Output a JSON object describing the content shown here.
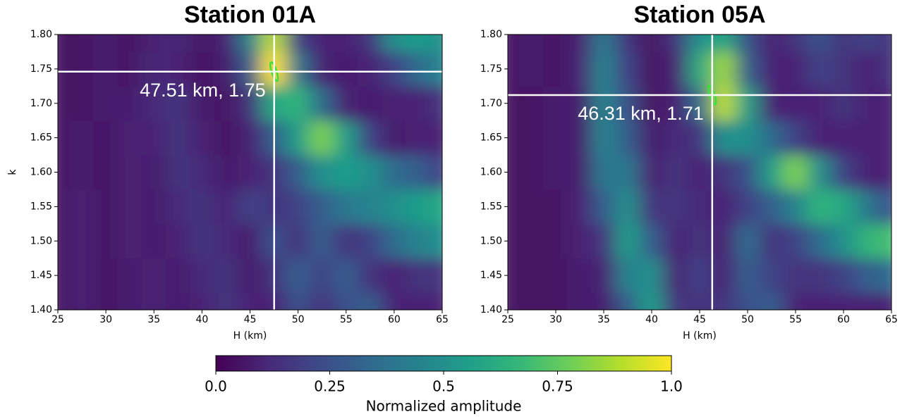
{
  "chart_data": [
    {
      "type": "heatmap",
      "title": "Station 01A",
      "x_label": "H (km)",
      "y_label": "k",
      "x": [
        25,
        27.5,
        30,
        32.5,
        35,
        37.5,
        40,
        42.5,
        45,
        47.5,
        50,
        52.5,
        55,
        57.5,
        60,
        62.5,
        65
      ],
      "y": [
        1.4,
        1.45,
        1.5,
        1.55,
        1.6,
        1.65,
        1.7,
        1.75,
        1.8
      ],
      "z": [
        [
          0.05,
          0.1,
          0.05,
          0.08,
          0.1,
          0.08,
          0.1,
          0.15,
          0.1,
          0.1,
          0.25,
          0.15,
          0.25,
          0.3,
          0.1,
          0.1,
          0.1
        ],
        [
          0.05,
          0.1,
          0.05,
          0.08,
          0.1,
          0.08,
          0.12,
          0.15,
          0.08,
          0.15,
          0.3,
          0.2,
          0.3,
          0.15,
          0.1,
          0.15,
          0.15
        ],
        [
          0.05,
          0.1,
          0.05,
          0.1,
          0.08,
          0.1,
          0.15,
          0.12,
          0.08,
          0.25,
          0.15,
          0.3,
          0.15,
          0.2,
          0.35,
          0.45,
          0.5
        ],
        [
          0.05,
          0.1,
          0.05,
          0.1,
          0.08,
          0.12,
          0.15,
          0.1,
          0.2,
          0.15,
          0.2,
          0.3,
          0.4,
          0.45,
          0.5,
          0.55,
          0.6
        ],
        [
          0.05,
          0.08,
          0.05,
          0.1,
          0.08,
          0.15,
          0.12,
          0.08,
          0.1,
          0.15,
          0.3,
          0.5,
          0.55,
          0.5,
          0.35,
          0.3,
          0.2
        ],
        [
          0.05,
          0.08,
          0.06,
          0.1,
          0.1,
          0.15,
          0.1,
          0.05,
          0.1,
          0.3,
          0.55,
          0.8,
          0.55,
          0.2,
          0.08,
          0.1,
          0.1
        ],
        [
          0.05,
          0.05,
          0.08,
          0.08,
          0.12,
          0.15,
          0.08,
          0.05,
          0.15,
          0.6,
          0.65,
          0.35,
          0.1,
          0.08,
          0.1,
          0.1,
          0.15
        ],
        [
          0.05,
          0.05,
          0.08,
          0.05,
          0.12,
          0.1,
          0.05,
          0.08,
          0.3,
          1.0,
          0.4,
          0.1,
          0.08,
          0.1,
          0.2,
          0.35,
          0.45
        ],
        [
          0.05,
          0.05,
          0.08,
          0.05,
          0.1,
          0.12,
          0.05,
          0.1,
          0.45,
          0.9,
          0.2,
          0.1,
          0.1,
          0.15,
          0.5,
          0.55,
          0.5
        ]
      ],
      "xlim": [
        25,
        65
      ],
      "ylim": [
        1.4,
        1.8
      ],
      "xticks": [
        25,
        30,
        35,
        40,
        45,
        50,
        55,
        60,
        65
      ],
      "yticks": [
        {
          "value": 1.4,
          "label": "1.40"
        },
        1.45,
        {
          "value": 1.5,
          "label": "1.50"
        },
        1.55,
        {
          "value": 1.6,
          "label": "1.60"
        },
        1.65,
        {
          "value": 1.7,
          "label": "1.70"
        },
        1.75,
        {
          "value": 1.8,
          "label": "1.80"
        }
      ],
      "peak_x": 47.51,
      "peak_y": 1.746,
      "annotation": "47.51 km, 1.75"
    },
    {
      "type": "heatmap",
      "title": "Station 05A",
      "x_label": "H (km)",
      "x": [
        25,
        27.5,
        30,
        32.5,
        35,
        37.5,
        40,
        42.5,
        45,
        47.5,
        50,
        52.5,
        55,
        57.5,
        60,
        62.5,
        65
      ],
      "y": [
        1.4,
        1.45,
        1.5,
        1.55,
        1.6,
        1.65,
        1.7,
        1.75,
        1.8
      ],
      "z": [
        [
          0.05,
          0.05,
          0.05,
          0.08,
          0.08,
          0.3,
          0.55,
          0.15,
          0.15,
          0.15,
          0.25,
          0.3,
          0.1,
          0.1,
          0.1,
          0.1,
          0.1
        ],
        [
          0.05,
          0.05,
          0.05,
          0.08,
          0.1,
          0.45,
          0.5,
          0.1,
          0.2,
          0.1,
          0.3,
          0.2,
          0.15,
          0.15,
          0.2,
          0.3,
          0.35
        ],
        [
          0.05,
          0.05,
          0.05,
          0.1,
          0.15,
          0.55,
          0.3,
          0.1,
          0.15,
          0.1,
          0.35,
          0.15,
          0.2,
          0.35,
          0.5,
          0.65,
          0.7
        ],
        [
          0.05,
          0.05,
          0.05,
          0.1,
          0.3,
          0.5,
          0.15,
          0.15,
          0.12,
          0.1,
          0.2,
          0.3,
          0.45,
          0.65,
          0.6,
          0.4,
          0.25
        ],
        [
          0.05,
          0.05,
          0.08,
          0.08,
          0.4,
          0.4,
          0.1,
          0.15,
          0.1,
          0.15,
          0.25,
          0.55,
          0.8,
          0.5,
          0.2,
          0.1,
          0.1
        ],
        [
          0.05,
          0.05,
          0.08,
          0.08,
          0.45,
          0.3,
          0.08,
          0.12,
          0.15,
          0.5,
          0.5,
          0.35,
          0.2,
          0.1,
          0.1,
          0.1,
          0.1
        ],
        [
          0.05,
          0.05,
          0.08,
          0.08,
          0.45,
          0.25,
          0.05,
          0.1,
          0.35,
          0.9,
          0.55,
          0.1,
          0.1,
          0.1,
          0.15,
          0.1,
          0.1
        ],
        [
          0.05,
          0.08,
          0.05,
          0.1,
          0.45,
          0.2,
          0.05,
          0.1,
          0.6,
          0.85,
          0.3,
          0.1,
          0.1,
          0.2,
          0.15,
          0.1,
          0.15
        ],
        [
          0.05,
          0.08,
          0.05,
          0.1,
          0.4,
          0.15,
          0.05,
          0.15,
          0.5,
          0.6,
          0.25,
          0.1,
          0.15,
          0.25,
          0.15,
          0.2,
          0.15
        ]
      ],
      "xlim": [
        25,
        65
      ],
      "ylim": [
        1.4,
        1.8
      ],
      "xticks": [
        25,
        30,
        35,
        40,
        45,
        50,
        55,
        60,
        65
      ],
      "yticks": [
        {
          "value": 1.4,
          "label": "1.40"
        },
        1.45,
        {
          "value": 1.5,
          "label": "1.50"
        },
        1.55,
        {
          "value": 1.6,
          "label": "1.60"
        },
        1.65,
        {
          "value": 1.7,
          "label": "1.70"
        },
        1.75,
        {
          "value": 1.8,
          "label": "1.80"
        }
      ],
      "peak_x": 46.31,
      "peak_y": 1.712,
      "annotation": "46.31 km, 1.71"
    }
  ],
  "colorbar": {
    "label": "Normalized amplitude",
    "lim": [
      0,
      1
    ],
    "ticks": [
      {
        "value": 0,
        "label": "0.0"
      },
      0.25,
      0.5,
      0.75,
      {
        "value": 1,
        "label": "1.0"
      }
    ],
    "colormap": [
      "#440154",
      "#482878",
      "#3e4989",
      "#31688e",
      "#26828e",
      "#1f9e89",
      "#35b779",
      "#6ece58",
      "#b5de2b",
      "#fde725"
    ]
  }
}
